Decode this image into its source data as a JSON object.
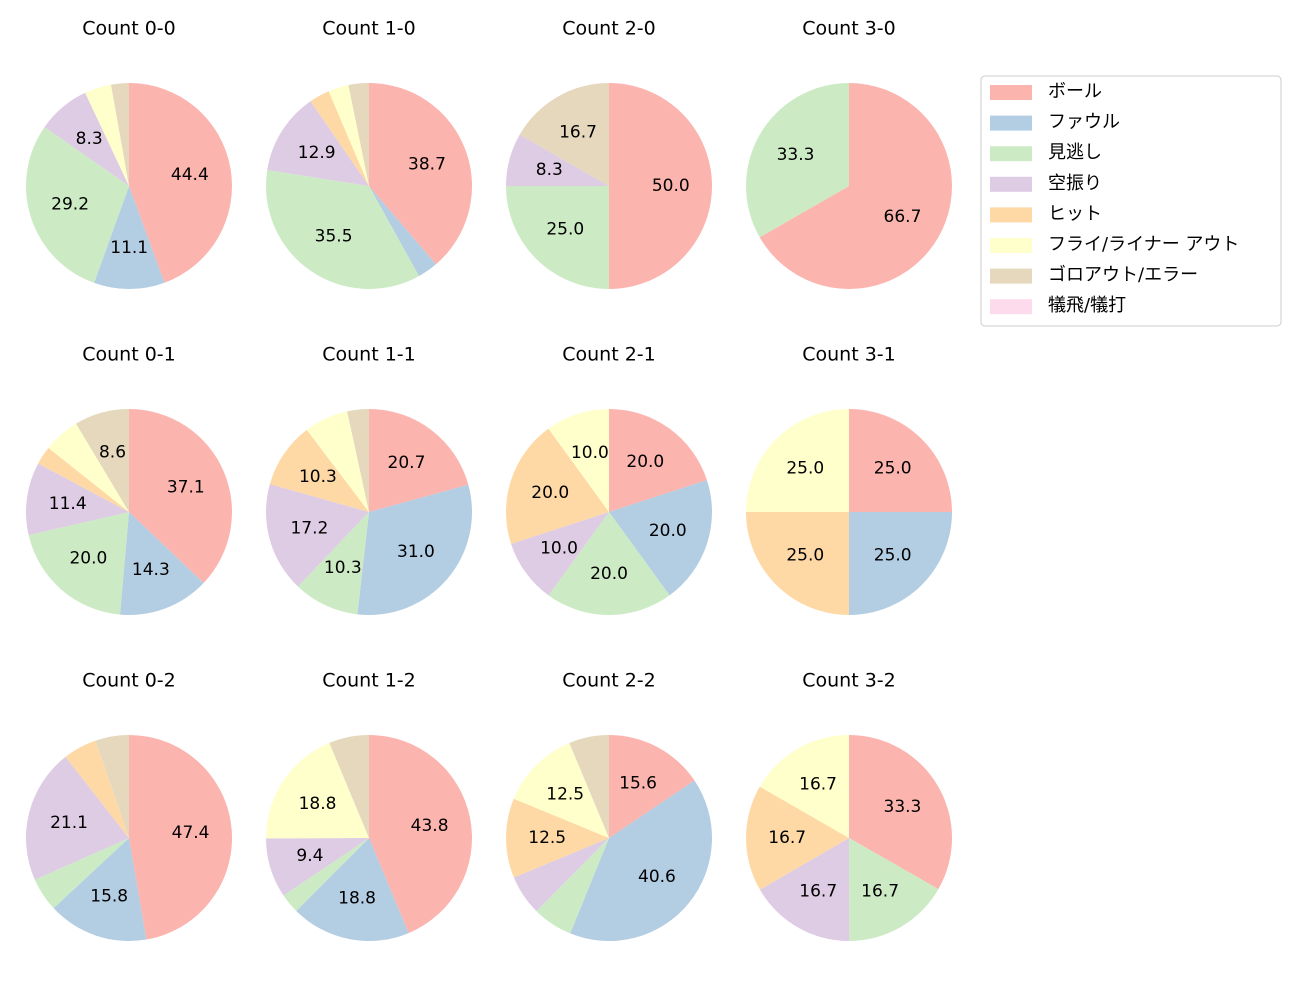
{
  "legend": {
    "labels": [
      "ボール",
      "ファウル",
      "見逃し",
      "空振り",
      "ヒット",
      "フライ/ライナー アウト",
      "ゴロアウト/エラー",
      "犠飛/犠打"
    ],
    "colors": [
      "#fbb4ae",
      "#b3cde3",
      "#ccebc5",
      "#decbe4",
      "#fed9a6",
      "#ffffcc",
      "#e5d8bd",
      "#fddaec"
    ]
  },
  "chart_data": [
    {
      "type": "pie",
      "title": "Count 0-0",
      "values": [
        44.4,
        11.1,
        29.2,
        8.3,
        0,
        4.2,
        2.8,
        0
      ],
      "value_labels": [
        "44.4",
        "11.1",
        "29.2",
        "8.3",
        null,
        null,
        null,
        null
      ]
    },
    {
      "type": "pie",
      "title": "Count 1-0",
      "values": [
        38.7,
        3.2,
        35.5,
        12.9,
        3.2,
        3.2,
        3.2,
        0
      ],
      "value_labels": [
        "38.7",
        null,
        "35.5",
        "12.9",
        null,
        null,
        null,
        null
      ]
    },
    {
      "type": "pie",
      "title": "Count 2-0",
      "values": [
        50.0,
        0,
        25.0,
        8.3,
        0,
        0,
        16.7,
        0
      ],
      "value_labels": [
        "50.0",
        null,
        "25.0",
        "8.3",
        null,
        null,
        "16.7",
        null
      ]
    },
    {
      "type": "pie",
      "title": "Count 3-0",
      "values": [
        66.7,
        0,
        33.3,
        0,
        0,
        0,
        0,
        0
      ],
      "value_labels": [
        "66.7",
        null,
        "33.3",
        null,
        null,
        null,
        null,
        null
      ]
    },
    {
      "type": "pie",
      "title": "Count 0-1",
      "values": [
        37.1,
        14.3,
        20.0,
        11.4,
        2.9,
        5.7,
        8.6,
        0
      ],
      "value_labels": [
        "37.1",
        "14.3",
        "20.0",
        "11.4",
        null,
        null,
        "8.6",
        null
      ]
    },
    {
      "type": "pie",
      "title": "Count 1-1",
      "values": [
        20.7,
        31.0,
        10.3,
        17.2,
        10.3,
        6.9,
        3.4,
        0
      ],
      "value_labels": [
        "20.7",
        "31.0",
        "10.3",
        "17.2",
        "10.3",
        null,
        null,
        null
      ]
    },
    {
      "type": "pie",
      "title": "Count 2-1",
      "values": [
        20.0,
        20.0,
        20.0,
        10.0,
        20.0,
        10.0,
        0,
        0
      ],
      "value_labels": [
        "20.0",
        "20.0",
        "20.0",
        "10.0",
        "20.0",
        "10.0",
        null,
        null
      ]
    },
    {
      "type": "pie",
      "title": "Count 3-1",
      "values": [
        25.0,
        25.0,
        0,
        0,
        25.0,
        25.0,
        0,
        0
      ],
      "value_labels": [
        "25.0",
        "25.0",
        null,
        null,
        "25.0",
        "25.0",
        null,
        null
      ]
    },
    {
      "type": "pie",
      "title": "Count 0-2",
      "values": [
        47.4,
        15.8,
        5.3,
        21.1,
        5.3,
        0,
        5.3,
        0
      ],
      "value_labels": [
        "47.4",
        "15.8",
        null,
        "21.1",
        null,
        null,
        null,
        null
      ]
    },
    {
      "type": "pie",
      "title": "Count 1-2",
      "values": [
        43.8,
        18.8,
        3.1,
        9.4,
        0,
        18.8,
        6.3,
        0
      ],
      "value_labels": [
        "43.8",
        "18.8",
        null,
        "9.4",
        null,
        "18.8",
        null,
        null
      ]
    },
    {
      "type": "pie",
      "title": "Count 2-2",
      "values": [
        15.6,
        40.6,
        6.3,
        6.3,
        12.5,
        12.5,
        6.3,
        0
      ],
      "value_labels": [
        "15.6",
        "40.6",
        null,
        null,
        "12.5",
        "12.5",
        null,
        null
      ]
    },
    {
      "type": "pie",
      "title": "Count 3-2",
      "values": [
        33.3,
        0,
        16.7,
        16.7,
        16.7,
        16.7,
        0,
        0
      ],
      "value_labels": [
        "33.3",
        null,
        "16.7",
        "16.7",
        "16.7",
        "16.7",
        null,
        null
      ]
    }
  ]
}
